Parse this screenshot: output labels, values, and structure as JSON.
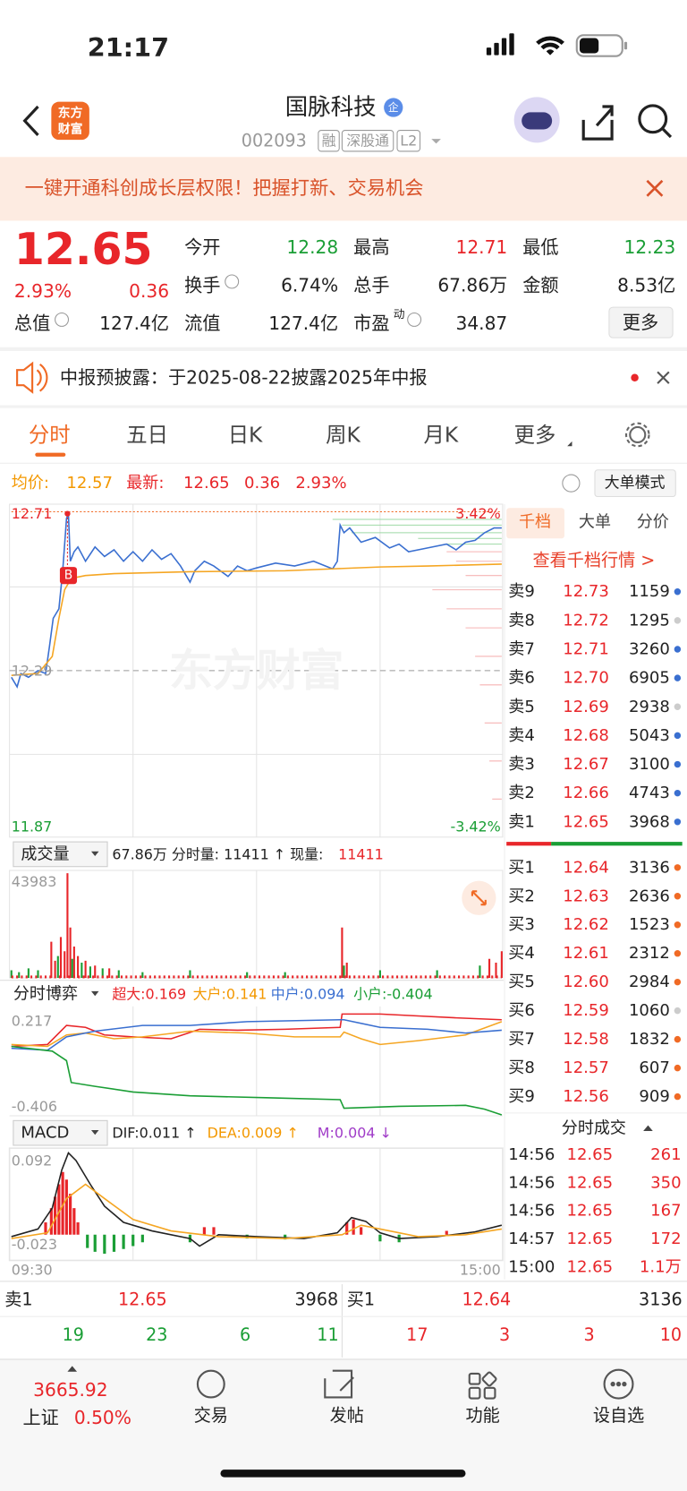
{
  "status_bar": {
    "time": "21:17"
  },
  "header": {
    "logo": [
      "东方",
      "财富"
    ],
    "title": "国脉科技",
    "badge": "企",
    "code": "002093",
    "tags": [
      "融",
      "深股通",
      "L2"
    ]
  },
  "banner": {
    "text": "一键开通科创成长层权限！把握打新、交易机会"
  },
  "quote": {
    "price": "12.65",
    "change_pct": "2.93%",
    "change": "0.36",
    "more": "更多",
    "fields": [
      {
        "label": "今开",
        "value": "12.28",
        "color": "green"
      },
      {
        "label": "最高",
        "value": "12.71",
        "color": "red"
      },
      {
        "label": "最低",
        "value": "12.23",
        "color": "green"
      },
      {
        "label": "换手",
        "value": "6.74%",
        "info": true
      },
      {
        "label": "总手",
        "value": "67.86万"
      },
      {
        "label": "金额",
        "value": "8.53亿"
      },
      {
        "label": "总值",
        "value": "127.4亿",
        "info": true
      },
      {
        "label": "流值",
        "value": "127.4亿"
      },
      {
        "label": "市盈",
        "sup": "动",
        "value": "34.87",
        "info": true
      }
    ]
  },
  "notice": {
    "text": "中报预披露：于2025-08-22披露2025年中报"
  },
  "tabs": [
    "分时",
    "五日",
    "日K",
    "周K",
    "月K",
    "更多"
  ],
  "info_bar": {
    "avg_label": "均价:",
    "avg": "12.57",
    "latest_label": "最新:",
    "latest": "12.65",
    "change": "0.36",
    "change_pct": "2.93%",
    "mode": "大单模式"
  },
  "price_chart": {
    "high": "12.71",
    "low": "11.87",
    "high_pct": "3.42%",
    "low_pct": "-3.42%",
    "prev_close": "12.29",
    "watermark": "东方财富",
    "marker": "B"
  },
  "volume": {
    "selector": "成交量",
    "summary": "67.86万 分时量: 11411 ↑ 现量:",
    "current": "11411",
    "max": "43983"
  },
  "game": {
    "selector": "分时博弈",
    "items": [
      {
        "text": "超大:0.169",
        "color": "red"
      },
      {
        "text": "大户:0.141",
        "color": "orange"
      },
      {
        "text": "中户:0.094",
        "color": "blue"
      },
      {
        "text": "小户:-0.404",
        "color": "green"
      }
    ],
    "max": "0.217",
    "min": "-0.406"
  },
  "macd": {
    "selector": "MACD",
    "items": [
      {
        "text": "DIF:0.011 ↑",
        "color": "black"
      },
      {
        "text": "DEA:0.009 ↑",
        "color": "orange"
      },
      {
        "text": "M:0.004 ↓",
        "color": "purple"
      }
    ],
    "max": "0.092",
    "min": "-0.023",
    "start": "09:30",
    "end": "15:00"
  },
  "order_book": {
    "tabs": [
      "千档",
      "大单",
      "分价"
    ],
    "link": "查看千档行情 >",
    "asks": [
      [
        "卖9",
        "12.73",
        "1159",
        "blue"
      ],
      [
        "卖8",
        "12.72",
        "1295",
        "gray"
      ],
      [
        "卖7",
        "12.71",
        "3260",
        "blue"
      ],
      [
        "卖6",
        "12.70",
        "6905",
        "blue"
      ],
      [
        "卖5",
        "12.69",
        "2938",
        "gray"
      ],
      [
        "卖4",
        "12.68",
        "5043",
        "blue"
      ],
      [
        "卖3",
        "12.67",
        "3100",
        "blue"
      ],
      [
        "卖2",
        "12.66",
        "4743",
        "blue"
      ],
      [
        "卖1",
        "12.65",
        "3968",
        "blue"
      ]
    ],
    "bids": [
      [
        "买1",
        "12.64",
        "3136",
        "orange"
      ],
      [
        "买2",
        "12.63",
        "2636",
        "orange"
      ],
      [
        "买3",
        "12.62",
        "1523",
        "orange"
      ],
      [
        "买4",
        "12.61",
        "2312",
        "orange"
      ],
      [
        "买5",
        "12.60",
        "2984",
        "orange"
      ],
      [
        "买6",
        "12.59",
        "1060",
        "gray"
      ],
      [
        "买7",
        "12.58",
        "1832",
        "orange"
      ],
      [
        "买8",
        "12.57",
        "607",
        "orange"
      ],
      [
        "买9",
        "12.56",
        "909",
        "orange"
      ]
    ],
    "trades_title": "分时成交",
    "trades": [
      [
        "14:56",
        "12.65",
        "261"
      ],
      [
        "14:56",
        "12.65",
        "350"
      ],
      [
        "14:56",
        "12.65",
        "167"
      ],
      [
        "14:57",
        "12.65",
        "172"
      ],
      [
        "15:00",
        "12.65",
        "1.1万"
      ]
    ]
  },
  "summary": {
    "sell_label": "卖1",
    "sell_price": "12.65",
    "sell_vol": "3968",
    "buy_label": "买1",
    "buy_price": "12.64",
    "buy_vol": "3136",
    "left_counts": [
      "19",
      "23",
      "6",
      "11"
    ],
    "right_counts": [
      "17",
      "3",
      "3",
      "10"
    ]
  },
  "nav": {
    "index_value": "3665.92",
    "index_name": "上证",
    "index_change": "0.50%",
    "items": [
      "交易",
      "发帖",
      "功能",
      "设自选"
    ]
  }
}
